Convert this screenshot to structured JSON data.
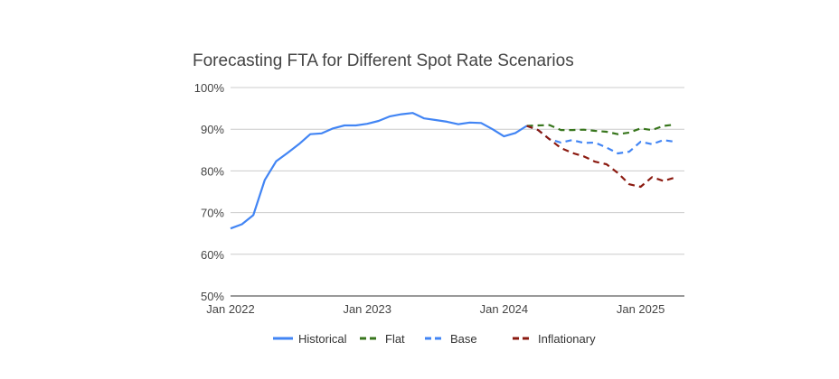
{
  "chart_data": {
    "type": "line",
    "title": "Forecasting FTA for Different Spot Rate Scenarios",
    "xlabel": "",
    "ylabel": "",
    "ylim": [
      50,
      100
    ],
    "y_ticks": [
      "50%",
      "60%",
      "70%",
      "80%",
      "90%",
      "100%"
    ],
    "y_tick_values": [
      50,
      60,
      70,
      80,
      90,
      100
    ],
    "x_ticks": [
      "Jan 2022",
      "Jan 2023",
      "Jan 2024",
      "Jan 2025"
    ],
    "x_tick_values": [
      "2022-01",
      "2023-01",
      "2024-01",
      "2025-01"
    ],
    "grid": true,
    "legend_position": "bottom",
    "series": [
      {
        "name": "Historical",
        "color": "#4285f4",
        "style": "solid",
        "x": [
          "2022-01",
          "2022-02",
          "2022-03",
          "2022-04",
          "2022-05",
          "2022-06",
          "2022-07",
          "2022-08",
          "2022-09",
          "2022-10",
          "2022-11",
          "2022-12",
          "2023-01",
          "2023-02",
          "2023-03",
          "2023-04",
          "2023-05",
          "2023-06",
          "2023-07",
          "2023-08",
          "2023-09",
          "2023-10",
          "2023-11",
          "2023-12",
          "2024-01",
          "2024-02",
          "2024-03"
        ],
        "values": [
          66.2,
          67.2,
          69.4,
          77.8,
          82.3,
          84.3,
          86.4,
          88.8,
          89.0,
          90.2,
          90.9,
          90.9,
          91.3,
          92.0,
          93.1,
          93.6,
          93.9,
          92.6,
          92.2,
          91.8,
          91.2,
          91.6,
          91.5,
          90.0,
          88.3,
          89.1,
          90.8
        ]
      },
      {
        "name": "Flat",
        "color": "#38761d",
        "style": "dashed",
        "x": [
          "2024-03",
          "2024-04",
          "2024-05",
          "2024-06",
          "2024-07",
          "2024-08",
          "2024-09",
          "2024-10",
          "2024-11",
          "2024-12",
          "2025-01",
          "2025-02",
          "2025-03",
          "2025-04"
        ],
        "values": [
          90.8,
          90.9,
          91.0,
          89.8,
          89.8,
          89.9,
          89.6,
          89.4,
          88.8,
          89.2,
          90.2,
          89.8,
          90.8,
          91.1
        ]
      },
      {
        "name": "Base",
        "color": "#4285f4",
        "style": "dashed",
        "x": [
          "2024-03",
          "2024-04",
          "2024-05",
          "2024-06",
          "2024-07",
          "2024-08",
          "2024-09",
          "2024-10",
          "2024-11",
          "2024-12",
          "2025-01",
          "2025-02",
          "2025-03",
          "2025-04"
        ],
        "values": [
          90.8,
          89.8,
          87.6,
          86.8,
          87.4,
          86.7,
          86.8,
          85.6,
          84.2,
          84.6,
          87.0,
          86.4,
          87.4,
          87.0
        ]
      },
      {
        "name": "Inflationary",
        "color": "#8b1a10",
        "style": "dashed",
        "x": [
          "2024-03",
          "2024-04",
          "2024-05",
          "2024-06",
          "2024-07",
          "2024-08",
          "2024-09",
          "2024-10",
          "2024-11",
          "2024-12",
          "2025-01",
          "2025-02",
          "2025-03",
          "2025-04"
        ],
        "values": [
          90.8,
          89.8,
          87.6,
          85.5,
          84.3,
          83.5,
          82.2,
          81.6,
          79.5,
          76.8,
          76.2,
          78.5,
          77.6,
          78.4
        ]
      }
    ]
  }
}
